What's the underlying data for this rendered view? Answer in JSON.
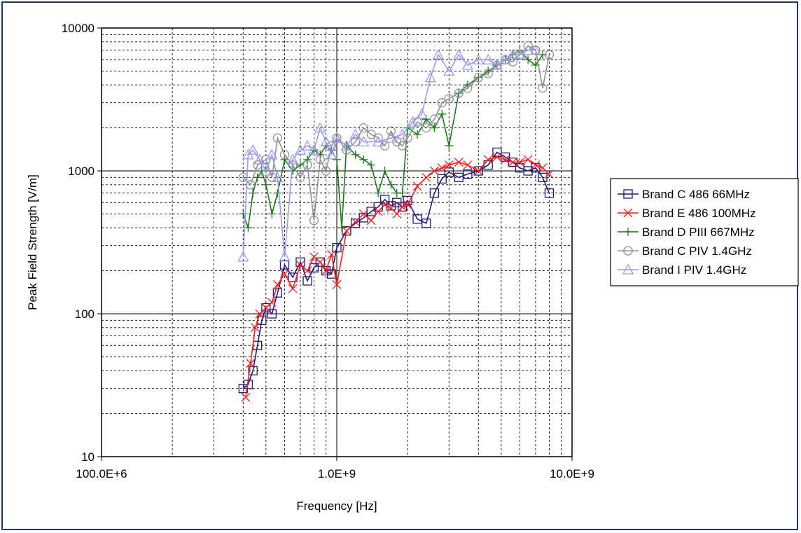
{
  "chart_data": {
    "type": "line",
    "title": "",
    "xlabel": "Frequency [Hz]",
    "ylabel": "Peak Field Strength [V/m]",
    "x_scale": "log",
    "y_scale": "log",
    "xlim": [
      100000000,
      10000000000
    ],
    "ylim": [
      10,
      10000
    ],
    "grid": true,
    "legend_position": "right",
    "x_ticks": [
      {
        "value": 100000000,
        "label": "100.0E+6"
      },
      {
        "value": 1000000000,
        "label": "1.0E+9"
      },
      {
        "value": 10000000000,
        "label": "10.0E+9"
      }
    ],
    "y_ticks": [
      {
        "value": 10,
        "label": "10"
      },
      {
        "value": 100,
        "label": "100"
      },
      {
        "value": 1000,
        "label": "1000"
      },
      {
        "value": 10000,
        "label": "10000"
      }
    ],
    "series": [
      {
        "name": "Brand C 486 66MHz",
        "color": "#1a1a80",
        "marker": "square",
        "x": [
          400000000.0,
          420000000.0,
          440000000.0,
          460000000.0,
          480000000.0,
          500000000.0,
          530000000.0,
          560000000.0,
          600000000.0,
          650000000.0,
          700000000.0,
          750000000.0,
          800000000.0,
          850000000.0,
          900000000.0,
          950000000.0,
          1000000000.0,
          1100000000.0,
          1200000000.0,
          1300000000.0,
          1400000000.0,
          1500000000.0,
          1600000000.0,
          1700000000.0,
          1800000000.0,
          1900000000.0,
          2000000000.0,
          2200000000.0,
          2400000000.0,
          2600000000.0,
          2800000000.0,
          3000000000.0,
          3300000000.0,
          3600000000.0,
          4000000000.0,
          4400000000.0,
          4800000000.0,
          5200000000.0,
          5600000000.0,
          6000000000.0,
          6500000000.0,
          7000000000.0,
          7500000000.0,
          8000000000.0
        ],
        "y": [
          30,
          32,
          40,
          60,
          90,
          110,
          100,
          140,
          220,
          180,
          230,
          170,
          210,
          230,
          200,
          190,
          290,
          380,
          430,
          470,
          520,
          560,
          630,
          570,
          600,
          560,
          620,
          460,
          430,
          700,
          880,
          980,
          900,
          950,
          1000,
          1100,
          1350,
          1250,
          1150,
          1050,
          1000,
          1050,
          900,
          700
        ]
      },
      {
        "name": "Brand E 486 100MHz",
        "color": "#ff1a1a",
        "marker": "x",
        "x": [
          410000000.0,
          430000000.0,
          450000000.0,
          470000000.0,
          500000000.0,
          530000000.0,
          560000000.0,
          600000000.0,
          650000000.0,
          700000000.0,
          750000000.0,
          800000000.0,
          850000000.0,
          900000000.0,
          950000000.0,
          1000000000.0,
          1100000000.0,
          1200000000.0,
          1300000000.0,
          1400000000.0,
          1500000000.0,
          1600000000.0,
          1700000000.0,
          1800000000.0,
          1900000000.0,
          2000000000.0,
          2200000000.0,
          2400000000.0,
          2600000000.0,
          2800000000.0,
          3000000000.0,
          3300000000.0,
          3600000000.0,
          4000000000.0,
          4400000000.0,
          4800000000.0,
          5200000000.0,
          5600000000.0,
          6000000000.0,
          6500000000.0,
          7000000000.0,
          7500000000.0,
          8000000000.0
        ],
        "y": [
          26,
          45,
          80,
          100,
          110,
          120,
          160,
          190,
          150,
          220,
          200,
          250,
          230,
          200,
          260,
          160,
          380,
          440,
          500,
          450,
          520,
          580,
          550,
          500,
          560,
          580,
          780,
          900,
          1000,
          1050,
          1100,
          1150,
          1100,
          1000,
          1200,
          1250,
          1200,
          1150,
          1150,
          1200,
          1100,
          1050,
          950
        ]
      },
      {
        "name": "Brand D PIII 667MHz",
        "color": "#1a7a1a",
        "marker": "plus",
        "x": [
          400000000.0,
          420000000.0,
          440000000.0,
          460000000.0,
          480000000.0,
          500000000.0,
          530000000.0,
          560000000.0,
          600000000.0,
          650000000.0,
          700000000.0,
          750000000.0,
          800000000.0,
          850000000.0,
          900000000.0,
          950000000.0,
          1000000000.0,
          1050000000.0,
          1100000000.0,
          1200000000.0,
          1300000000.0,
          1400000000.0,
          1500000000.0,
          1600000000.0,
          1700000000.0,
          1800000000.0,
          1900000000.0,
          2000000000.0,
          2200000000.0,
          2400000000.0,
          2600000000.0,
          2800000000.0,
          3000000000.0,
          3300000000.0,
          3600000000.0,
          4000000000.0,
          4400000000.0,
          4800000000.0,
          5200000000.0,
          5600000000.0,
          6000000000.0,
          6500000000.0,
          7000000000.0,
          7500000000.0
        ],
        "y": [
          500,
          400,
          700,
          900,
          1000,
          800,
          500,
          700,
          1200,
          1000,
          1100,
          1200,
          1400,
          1300,
          1500,
          1400,
          1200,
          400,
          1500,
          1300,
          1200,
          1100,
          700,
          1000,
          800,
          700,
          700,
          2000,
          1800,
          2300,
          2000,
          2500,
          1500,
          3500,
          4000,
          4500,
          5000,
          5500,
          6000,
          6500,
          7000,
          6000,
          5500,
          6500
        ]
      },
      {
        "name": "Brand C PIV 1.4GHz",
        "color": "#909090",
        "marker": "circle",
        "x": [
          400000000.0,
          430000000.0,
          460000000.0,
          500000000.0,
          530000000.0,
          560000000.0,
          600000000.0,
          650000000.0,
          700000000.0,
          750000000.0,
          800000000.0,
          850000000.0,
          900000000.0,
          950000000.0,
          1000000000.0,
          1100000000.0,
          1200000000.0,
          1300000000.0,
          1400000000.0,
          1500000000.0,
          1600000000.0,
          1700000000.0,
          1800000000.0,
          1900000000.0,
          2000000000.0,
          2200000000.0,
          2400000000.0,
          2600000000.0,
          2800000000.0,
          3000000000.0,
          3300000000.0,
          3600000000.0,
          4000000000.0,
          4400000000.0,
          4800000000.0,
          5200000000.0,
          5600000000.0,
          6000000000.0,
          6500000000.0,
          7000000000.0,
          7500000000.0,
          8000000000.0
        ],
        "y": [
          900,
          800,
          1100,
          1200,
          900,
          1700,
          1300,
          1100,
          900,
          1100,
          450,
          1200,
          1000,
          1500,
          1700,
          1400,
          1600,
          2000,
          1800,
          1700,
          1500,
          1900,
          1600,
          1500,
          1700,
          2200,
          2000,
          2300,
          3000,
          3200,
          3500,
          3800,
          4500,
          4800,
          5500,
          6000,
          5800,
          6500,
          7500,
          7000,
          3800,
          6500
        ]
      },
      {
        "name": "Brand I PIV 1.4GHz",
        "color": "#9999ee",
        "marker": "triangle",
        "x": [
          400000000.0,
          420000000.0,
          440000000.0,
          470000000.0,
          500000000.0,
          530000000.0,
          560000000.0,
          600000000.0,
          650000000.0,
          700000000.0,
          750000000.0,
          800000000.0,
          850000000.0,
          900000000.0,
          950000000.0,
          1000000000.0,
          1100000000.0,
          1200000000.0,
          1300000000.0,
          1500000000.0,
          1700000000.0,
          1900000000.0,
          2100000000.0,
          2300000000.0,
          2500000000.0,
          2700000000.0,
          3000000000.0,
          3300000000.0,
          3600000000.0,
          4000000000.0,
          4400000000.0,
          4800000000.0,
          5200000000.0,
          5600000000.0,
          6000000000.0,
          6500000000.0,
          7000000000.0
        ],
        "y": [
          250,
          1300,
          1400,
          1200,
          1000,
          1300,
          900,
          250,
          1200,
          1400,
          1500,
          1400,
          2000,
          1600,
          1300,
          1700,
          1500,
          1800,
          1600,
          1600,
          1700,
          1800,
          2200,
          2500,
          4500,
          6500,
          5000,
          6500,
          5500,
          6000,
          6000,
          5500,
          6000,
          6500,
          6500,
          7000,
          7000
        ]
      }
    ]
  }
}
